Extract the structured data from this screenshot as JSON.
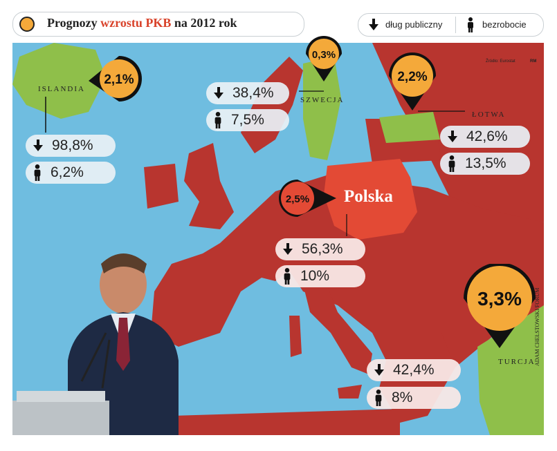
{
  "header": {
    "title_part1": "Prognozy ",
    "title_highlight": "wzrostu PKB",
    "title_part2": " na 2012 rok",
    "accent_color": "#f4a93a",
    "highlight_color": "#d9432b"
  },
  "legend": {
    "debt_label": "dług publiczny",
    "unemployment_label": "bezrobocie",
    "debt_icon": "arrow-down-icon",
    "unemployment_icon": "person-icon"
  },
  "source": {
    "text": "Źródło: Eurostat",
    "author_initials": "RM"
  },
  "photo_credit": "ADAM CHEŁSTOWSKI/FORUM",
  "countries": {
    "islandia": {
      "name": "ISLANDIA",
      "gdp": "2,1%",
      "debt": "98,8%",
      "unemployment": "6,2%"
    },
    "szwecja": {
      "name": "SZWECJA",
      "gdp": "0,3%",
      "debt": "38,4%",
      "unemployment": "7,5%"
    },
    "lotwa": {
      "name": "ŁOTWA",
      "gdp": "2,2%",
      "debt": "42,6%",
      "unemployment": "13,5%"
    },
    "polska": {
      "name": "Polska",
      "gdp": "2,5%",
      "debt": "56,3%",
      "unemployment": "10%"
    },
    "turcja": {
      "name": "TURCJA",
      "gdp": "3,3%",
      "debt": "42,4%",
      "unemployment": "8%"
    }
  },
  "colors": {
    "sea": "#6fbde0",
    "land": "#b8352f",
    "poland": "#e34a35",
    "highlight_land": "#8fbf4a",
    "pin": "#f4a93a"
  }
}
